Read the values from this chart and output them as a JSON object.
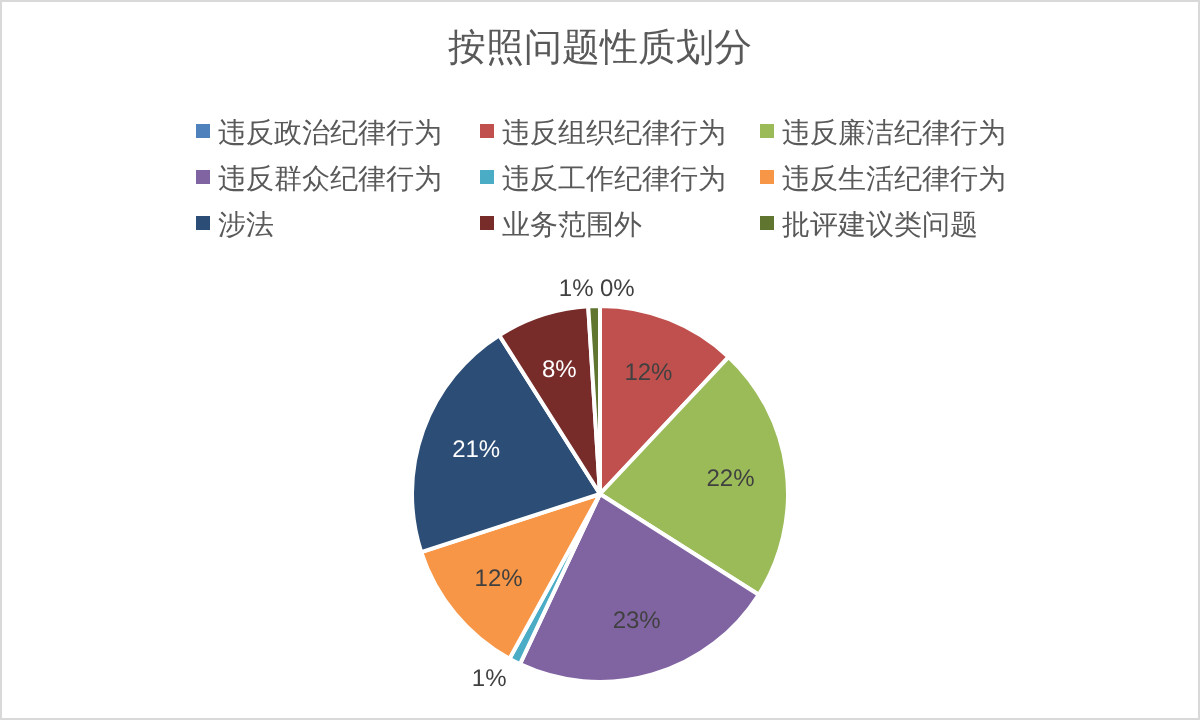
{
  "chart_data": {
    "type": "pie",
    "title": "按照问题性质划分",
    "categories": [
      "违反政治纪律行为",
      "违反组织纪律行为",
      "违反廉洁纪律行为",
      "违反群众纪律行为",
      "违反工作纪律行为",
      "违反生活纪律行为",
      "涉法",
      "业务范围外",
      "批评建议类问题"
    ],
    "values": [
      0,
      12,
      22,
      23,
      1,
      12,
      21,
      8,
      1
    ],
    "colors": [
      "#4f81bd",
      "#c0504d",
      "#9bbb59",
      "#8064a2",
      "#4bacc6",
      "#f79646",
      "#2c4d75",
      "#772c2a",
      "#5f7530"
    ],
    "value_labels": [
      "0%",
      "12%",
      "22%",
      "23%",
      "1%",
      "12%",
      "21%",
      "8%",
      "1%"
    ],
    "legend": "top"
  }
}
